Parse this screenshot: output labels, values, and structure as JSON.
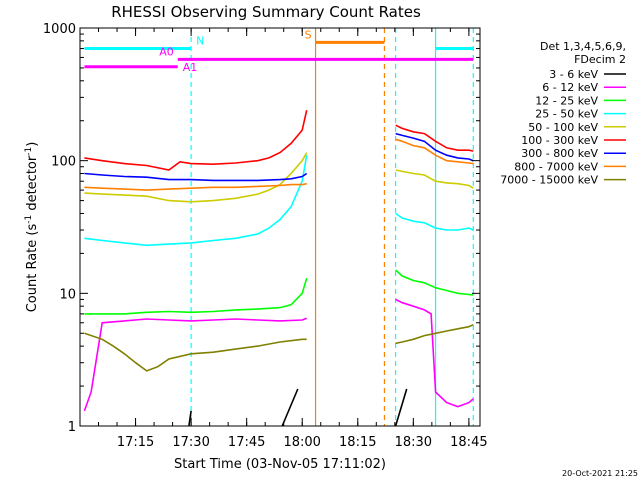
{
  "chart_data": {
    "type": "line",
    "title": "RHESSI Observing Summary Count Rates",
    "xlabel": "Start Time (03-Nov-05 17:11:02)",
    "ylabel_main": "Count Rate (s",
    "ylabel_sup1": "-1",
    "ylabel_mid": " detector",
    "ylabel_sup2": "-1",
    "ylabel_end": ")",
    "y_scale": "log",
    "ylim": [
      1,
      1000
    ],
    "xlim_minutes": [
      17.0,
      18.8
    ],
    "x_ticks": [
      {
        "label": "17:15",
        "value": 17.25
      },
      {
        "label": "17:30",
        "value": 17.5
      },
      {
        "label": "17:45",
        "value": 17.75
      },
      {
        "label": "18:00",
        "value": 18.0
      },
      {
        "label": "18:15",
        "value": 18.25
      },
      {
        "label": "18:30",
        "value": 18.5
      },
      {
        "label": "18:45",
        "value": 18.75
      }
    ],
    "y_ticks": [
      {
        "label": "1",
        "value": 1
      },
      {
        "label": "10",
        "value": 10
      },
      {
        "label": "100",
        "value": 100
      },
      {
        "label": "1000",
        "value": 1000
      }
    ],
    "legend_header": [
      "Det 1,3,4,5,6,9,",
      "FDecim 2"
    ],
    "legend_placement": "right",
    "series": [
      {
        "name": "3 - 6 keV",
        "color": "#000000",
        "segments": [
          {
            "x": [
              17.02,
              17.02
            ],
            "y": [
              1,
              1
            ]
          },
          {
            "x": [
              17.49,
              17.5
            ],
            "y": [
              1,
              1.3
            ]
          },
          {
            "x": [
              17.91,
              17.98
            ],
            "y": [
              1,
              1.9
            ]
          },
          {
            "x": [
              18.42,
              18.47
            ],
            "y": [
              1,
              1.9
            ]
          }
        ]
      },
      {
        "name": "6 - 12 keV",
        "color": "#ff00ff",
        "segments": [
          {
            "x": [
              17.02,
              17.05,
              17.1,
              17.2,
              17.3,
              17.4,
              17.5,
              17.6,
              17.7,
              17.8,
              17.9,
              18.0,
              18.02
            ],
            "y": [
              1.3,
              1.8,
              6,
              6.2,
              6.4,
              6.3,
              6.2,
              6.3,
              6.4,
              6.3,
              6.2,
              6.3,
              6.5
            ]
          },
          {
            "x": [
              18.42,
              18.45,
              18.5,
              18.55,
              18.58,
              18.6,
              18.65,
              18.7,
              18.75,
              18.77
            ],
            "y": [
              9,
              8.5,
              8,
              7.5,
              7,
              1.8,
              1.5,
              1.4,
              1.5,
              1.6
            ]
          }
        ]
      },
      {
        "name": "12 - 25 keV",
        "color": "#00ff00",
        "segments": [
          {
            "x": [
              17.02,
              17.1,
              17.2,
              17.3,
              17.4,
              17.5,
              17.6,
              17.7,
              17.8,
              17.9,
              17.95,
              18.0,
              18.02
            ],
            "y": [
              7,
              7,
              7,
              7.2,
              7.3,
              7.2,
              7.3,
              7.5,
              7.6,
              7.8,
              8.2,
              10,
              13
            ]
          },
          {
            "x": [
              18.42,
              18.45,
              18.5,
              18.55,
              18.6,
              18.65,
              18.7,
              18.75,
              18.77
            ],
            "y": [
              15,
              13.5,
              12.5,
              12,
              11,
              10.5,
              10,
              9.8,
              9.7
            ]
          }
        ]
      },
      {
        "name": "25 - 50 keV",
        "color": "#00ffff",
        "segments": [
          {
            "x": [
              17.02,
              17.1,
              17.2,
              17.3,
              17.4,
              17.5,
              17.6,
              17.7,
              17.8,
              17.85,
              17.9,
              17.95,
              18.0,
              18.02
            ],
            "y": [
              26,
              25,
              24,
              23,
              23.5,
              24,
              25,
              26,
              28,
              31,
              36,
              45,
              70,
              110
            ]
          },
          {
            "x": [
              18.42,
              18.45,
              18.5,
              18.55,
              18.6,
              18.65,
              18.7,
              18.75,
              18.77
            ],
            "y": [
              40,
              37,
              35,
              34,
              31,
              30,
              30,
              31,
              30
            ]
          }
        ]
      },
      {
        "name": "50 - 100 keV",
        "color": "#cccc00",
        "segments": [
          {
            "x": [
              17.02,
              17.1,
              17.2,
              17.3,
              17.4,
              17.5,
              17.6,
              17.7,
              17.8,
              17.85,
              17.9,
              17.95,
              18.0,
              18.02
            ],
            "y": [
              57,
              56,
              55,
              54,
              50,
              49,
              50,
              52,
              56,
              60,
              66,
              80,
              100,
              115
            ]
          },
          {
            "x": [
              18.42,
              18.45,
              18.5,
              18.55,
              18.6,
              18.65,
              18.7,
              18.75,
              18.77
            ],
            "y": [
              85,
              83,
              80,
              78,
              70,
              68,
              67,
              65,
              62
            ]
          }
        ]
      },
      {
        "name": "100 - 300 keV",
        "color": "#ff0000",
        "segments": [
          {
            "x": [
              17.02,
              17.1,
              17.2,
              17.3,
              17.4,
              17.45,
              17.5,
              17.6,
              17.7,
              17.8,
              17.85,
              17.9,
              17.95,
              18.0,
              18.02
            ],
            "y": [
              105,
              100,
              95,
              92,
              85,
              98,
              95,
              94,
              96,
              100,
              105,
              115,
              135,
              170,
              240
            ]
          },
          {
            "x": [
              18.42,
              18.45,
              18.5,
              18.55,
              18.6,
              18.65,
              18.7,
              18.75,
              18.77
            ],
            "y": [
              185,
              175,
              165,
              160,
              140,
              125,
              120,
              120,
              118
            ]
          }
        ]
      },
      {
        "name": "300 - 800 keV",
        "color": "#0000ff",
        "segments": [
          {
            "x": [
              17.02,
              17.1,
              17.2,
              17.3,
              17.4,
              17.5,
              17.6,
              17.7,
              17.8,
              17.9,
              17.95,
              18.0,
              18.02
            ],
            "y": [
              80,
              78,
              76,
              75,
              72,
              72,
              71,
              71,
              71,
              72,
              73,
              76,
              80
            ]
          },
          {
            "x": [
              18.42,
              18.45,
              18.5,
              18.55,
              18.6,
              18.65,
              18.7,
              18.75,
              18.77
            ],
            "y": [
              160,
              155,
              148,
              140,
              120,
              110,
              105,
              103,
              100
            ]
          }
        ]
      },
      {
        "name": "800 - 7000 keV",
        "color": "#ff8000",
        "segments": [
          {
            "x": [
              17.02,
              17.1,
              17.2,
              17.3,
              17.4,
              17.5,
              17.6,
              17.7,
              17.8,
              17.9,
              17.95,
              18.0,
              18.02
            ],
            "y": [
              63,
              62,
              61,
              60,
              61,
              62,
              63,
              63,
              64,
              65,
              66,
              66,
              67
            ]
          },
          {
            "x": [
              18.42,
              18.45,
              18.5,
              18.55,
              18.6,
              18.65,
              18.7,
              18.75,
              18.77
            ],
            "y": [
              145,
              140,
              130,
              125,
              110,
              100,
              98,
              96,
              95
            ]
          }
        ]
      },
      {
        "name": "7000 - 15000 keV",
        "color": "#808000",
        "segments": [
          {
            "x": [
              17.02,
              17.1,
              17.15,
              17.2,
              17.25,
              17.3,
              17.35,
              17.4,
              17.5,
              17.6,
              17.7,
              17.8,
              17.9,
              18.0,
              18.02
            ],
            "y": [
              5,
              4.5,
              4,
              3.5,
              3,
              2.6,
              2.8,
              3.2,
              3.5,
              3.6,
              3.8,
              4.0,
              4.3,
              4.5,
              4.5
            ]
          },
          {
            "x": [
              18.42,
              18.45,
              18.5,
              18.55,
              18.6,
              18.65,
              18.7,
              18.75,
              18.77
            ],
            "y": [
              4.2,
              4.3,
              4.5,
              4.8,
              5,
              5.2,
              5.4,
              5.6,
              5.8
            ]
          }
        ]
      }
    ],
    "attenuator_flags": [
      {
        "label": "N",
        "color": "#00ffff",
        "level": 700,
        "spans": [
          [
            17.02,
            17.5
          ],
          [
            18.6,
            18.77
          ]
        ]
      },
      {
        "label": "S",
        "color": "#ff8000",
        "level": 780,
        "spans": [
          [
            18.06,
            18.37
          ]
        ]
      },
      {
        "label": "A0",
        "color": "#ff00ff",
        "level": 580,
        "spans": [
          [
            17.44,
            18.77
          ]
        ]
      },
      {
        "label": "A1",
        "color": "#ff00ff",
        "level": 510,
        "spans": [
          [
            17.02,
            17.44
          ]
        ]
      }
    ],
    "vertical_markers": [
      {
        "x": 17.5,
        "color": "#00ffff",
        "style": "dashed"
      },
      {
        "x": 18.06,
        "color": "#ff8000",
        "style": "solid"
      },
      {
        "x": 18.37,
        "color": "#ff8000",
        "style": "dashed"
      },
      {
        "x": 18.42,
        "color": "#00ffff",
        "style": "dashed"
      },
      {
        "x": 18.6,
        "color": "#00ffff",
        "style": "solid"
      },
      {
        "x": 18.77,
        "color": "#00ffff",
        "style": "dashed"
      }
    ],
    "grid": false
  },
  "stamp": "20-Oct-2021 21:25"
}
